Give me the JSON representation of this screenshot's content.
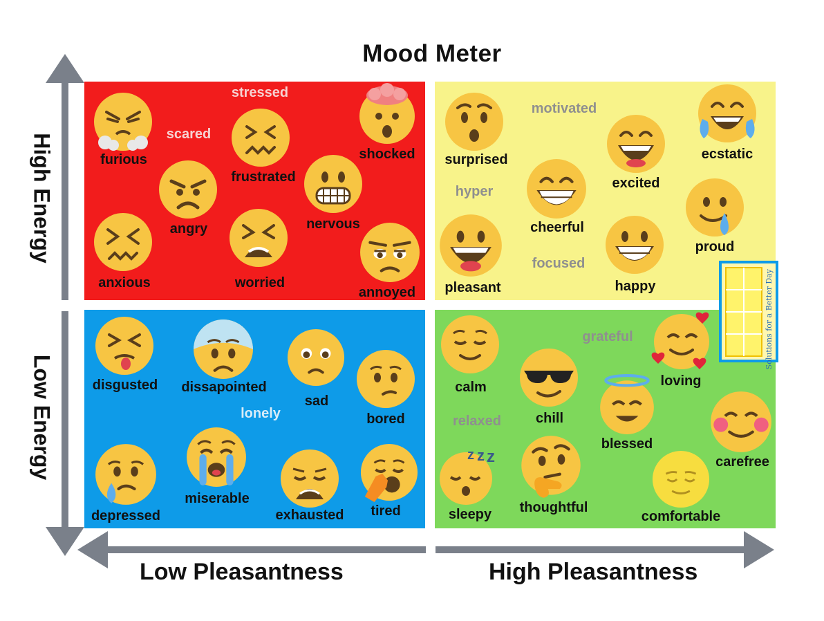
{
  "title": "Mood Meter",
  "axes": {
    "y_top": "High Energy",
    "y_bottom": "Low Energy",
    "x_left": "Low Pleasantness",
    "x_right": "High Pleasantness"
  },
  "quadrants": {
    "red": {
      "color": "#f21c1c",
      "word_color": "#f6d2d2",
      "emotions": [
        "furious",
        "angry",
        "frustrated",
        "shocked",
        "nervous",
        "anxious",
        "worried",
        "annoyed"
      ],
      "words": [
        "stressed",
        "scared"
      ]
    },
    "yellow": {
      "color": "#f8f38a",
      "word_color": "#8f8f8f",
      "emotions": [
        "surprised",
        "ecstatic",
        "excited",
        "cheerful",
        "proud",
        "pleasant",
        "happy"
      ],
      "words": [
        "motivated",
        "hyper",
        "focused"
      ]
    },
    "blue": {
      "color": "#0e9be8",
      "word_color": "#d8ecf8",
      "emotions": [
        "disgusted",
        "dissapointed",
        "sad",
        "bored",
        "depressed",
        "miserable",
        "exhausted",
        "tired"
      ],
      "words": [
        "lonely"
      ]
    },
    "green": {
      "color": "#7ed85b",
      "word_color": "#8f8f8f",
      "emotions": [
        "calm",
        "chill",
        "loving",
        "blessed",
        "carefree",
        "sleepy",
        "thoughtful",
        "comfortable"
      ],
      "words": [
        "grateful",
        "relaxed"
      ]
    }
  },
  "logo": {
    "text": "Solutions for a Better Day",
    "icon": "window-logo-icon"
  },
  "colors": {
    "arrow": "#7a808a",
    "emoji": "#f7c543"
  }
}
